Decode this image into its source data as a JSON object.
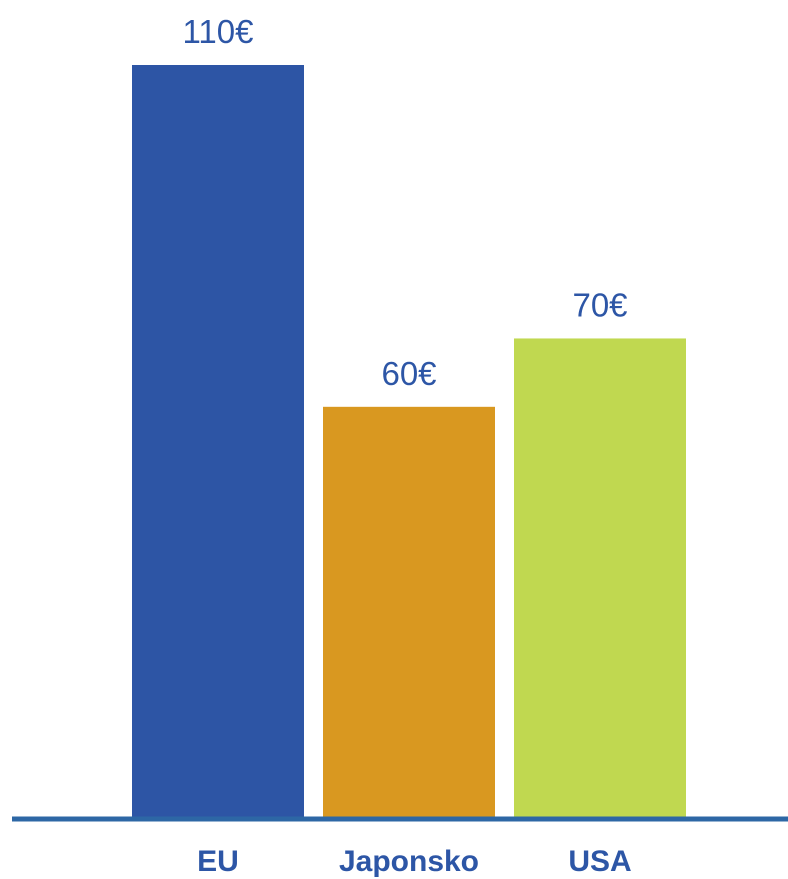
{
  "chart_data": {
    "type": "bar",
    "categories": [
      "EU",
      "Japonsko",
      "USA"
    ],
    "values": [
      110,
      60,
      70
    ],
    "value_labels": [
      "110€",
      "60€",
      "70€"
    ],
    "colors": [
      "#2d55a5",
      "#d99820",
      "#c0d850"
    ],
    "axis_color": "#2d67a5",
    "label_color": "#2d56a6",
    "title": "",
    "xlabel": "",
    "ylabel": "",
    "ylim": [
      0,
      110
    ],
    "grid": false,
    "legend": "none"
  }
}
